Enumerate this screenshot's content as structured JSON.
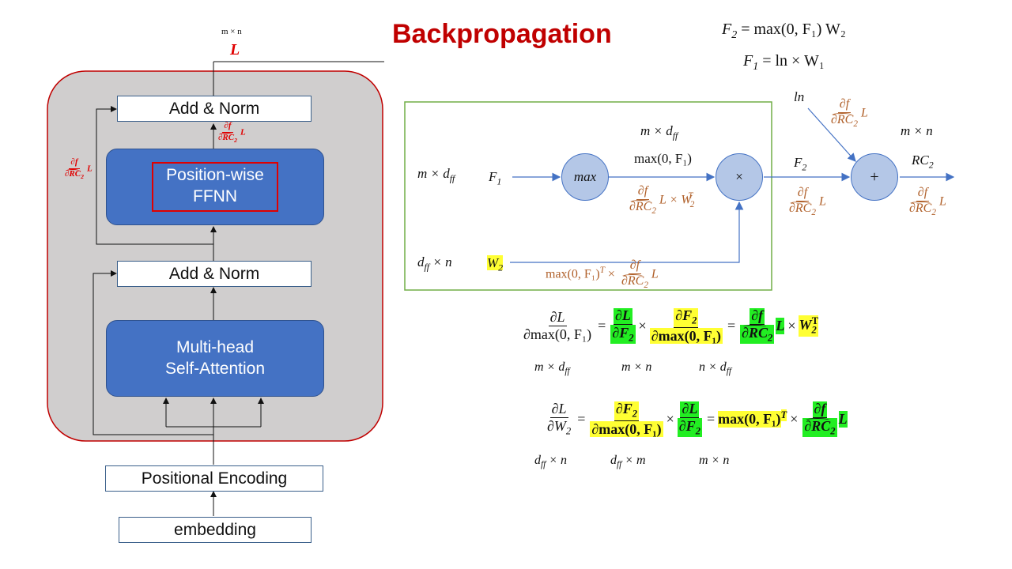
{
  "title": "Backpropagation",
  "colors": {
    "title": "#c00000",
    "block_fill": "#d0cece",
    "block_border": "#c00000",
    "blue": "#4472c4",
    "node": "#b4c7e7",
    "graph_border": "#70ad47",
    "brown": "#b0602a",
    "highlight_yellow": "#ffff33",
    "highlight_green": "#22ee22"
  },
  "transformer": {
    "top_dim": "m × n",
    "top_loss": "L",
    "add_norm_top": "Add & Norm",
    "ffnn": {
      "line1": "Position-wise",
      "line2": "FFNN"
    },
    "add_norm_bottom": "Add & Norm",
    "mhsa": {
      "line1": "Multi-head",
      "line2": "Self-Attention"
    },
    "positional_encoding": "Positional Encoding",
    "embedding": "embedding",
    "grad_label": {
      "num": "∂f",
      "den": "∂RC",
      "den_sub": "2",
      "tail": "L"
    }
  },
  "equations": {
    "f2": {
      "lhs": "F",
      "lhs_sub": "2",
      "rhs": "= max(0, F₁) W₂"
    },
    "f1": {
      "lhs": "F",
      "lhs_sub": "1",
      "rhs": "= ln × W₁"
    }
  },
  "graph": {
    "ln": "ln",
    "node_max": "max",
    "node_mul": "×",
    "node_add": "+",
    "input_dim_f1": "m × d",
    "input_dim_f1_sub": "ff",
    "input_f1": "F",
    "input_f1_sub": "1",
    "mid_dim": "m × d",
    "mid_dim_sub": "ff",
    "mid_value": "max(0, F₁)",
    "f2_label": "F",
    "f2_sub": "2",
    "out_dim": "m × n",
    "out_label": "RC",
    "out_sub": "2",
    "input_dim_w2": "d",
    "input_dim_w2_sub": "ff",
    "input_dim_w2_tail": " × n",
    "input_w2": "W",
    "input_w2_sub": "2",
    "grad_tail_L": "L",
    "grad_mul_w2": "L × W",
    "grad_mul_w2_sub": "2",
    "grad_mul_w2_sup": "T",
    "grad_w2_prefix": "max(0, F₁)",
    "grad_w2_sup": "T",
    "grad_w2_mid": " × ",
    "grad_num": "∂f",
    "grad_den": "∂RC",
    "grad_den_sub": "2"
  },
  "eq1": {
    "lhs_num": "∂L",
    "lhs_den": "∂max(0, F₁)",
    "t1_num": "∂L",
    "t1_den": "∂F",
    "t1_den_sub": "2",
    "t2_num": "∂F",
    "t2_num_sub": "2",
    "t2_den": "∂max(0, F₁)",
    "r_num": "∂f",
    "r_den": "∂RC",
    "r_den_sub": "2",
    "tail_L": "L",
    "times": "×",
    "tail_W": "W",
    "tail_W_sub": "2",
    "tail_W_sup": "T",
    "dims": [
      "m × d",
      "m × n",
      "n × d"
    ],
    "dims_sub": "ff"
  },
  "eq2": {
    "lhs_num": "∂L",
    "lhs_den": "∂W",
    "lhs_den_sub": "2",
    "t1_num": "∂F",
    "t1_num_sub": "2",
    "t1_den": "∂max(0, F₁)",
    "t2_num": "∂L",
    "t2_den": "∂F",
    "t2_den_sub": "2",
    "r_prefix": "max(0, F₁)",
    "r_sup": "T",
    "r_num": "∂f",
    "r_den": "∂RC",
    "r_den_sub": "2",
    "tail_L": "L",
    "dims": [
      "d",
      "d",
      "m × n"
    ],
    "dims_sub": "ff",
    "dims_tail": [
      " × n",
      " × m",
      ""
    ]
  }
}
